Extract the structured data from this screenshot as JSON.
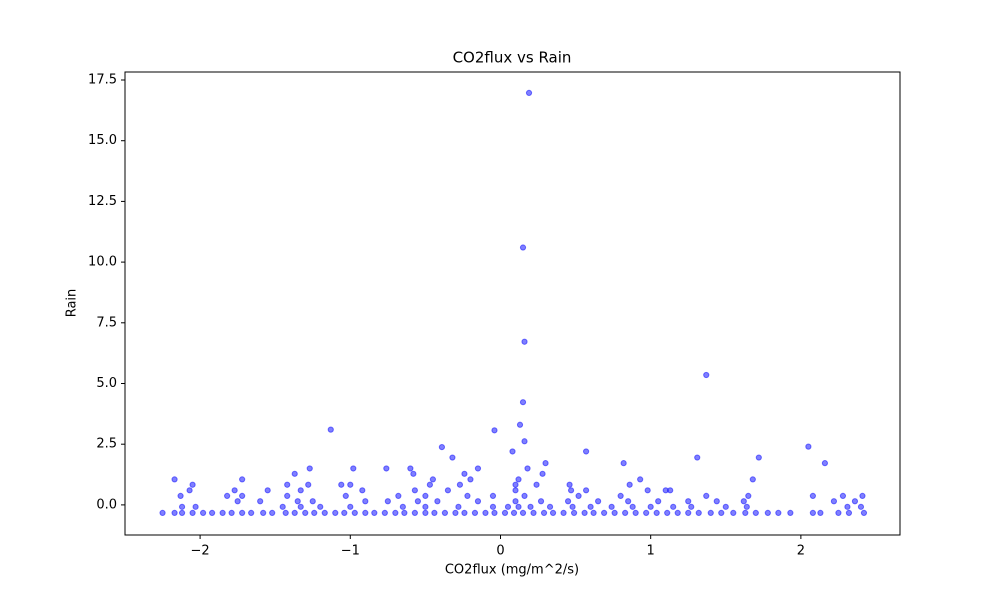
{
  "chart_data": {
    "type": "scatter",
    "title": "CO2flux vs Rain",
    "xlabel": "CO2flux (mg/m^2/s)",
    "ylabel": "Rain",
    "xlim": [
      -2.5,
      2.66
    ],
    "ylim": [
      -1.24,
      17.83
    ],
    "xticks": [
      {
        "value": -2,
        "label": "−2"
      },
      {
        "value": -1,
        "label": "−1"
      },
      0,
      1,
      2
    ],
    "yticks": [
      {
        "value": 0,
        "label": "0.0"
      },
      2.5,
      {
        "value": 5,
        "label": "5.0"
      },
      7.5,
      {
        "value": 10,
        "label": "10.0"
      },
      12.5,
      {
        "value": 15,
        "label": "15.0"
      },
      17.5
    ],
    "color": "#0000ff",
    "x": [
      -2.25,
      -2.17,
      -2.12,
      -2.05,
      -1.98,
      -1.92,
      -1.85,
      -1.79,
      -1.72,
      -1.66,
      -1.58,
      -1.52,
      -1.43,
      -1.37,
      -1.3,
      -1.24,
      -1.17,
      -1.1,
      -1.04,
      -0.97,
      -0.9,
      -0.84,
      -0.77,
      -0.7,
      -0.64,
      -0.57,
      -0.5,
      -0.44,
      -0.37,
      -0.3,
      -0.24,
      -0.17,
      -0.1,
      -0.04,
      0.03,
      0.09,
      0.15,
      0.22,
      0.29,
      0.35,
      0.42,
      0.49,
      0.56,
      0.62,
      0.69,
      0.76,
      0.83,
      0.9,
      0.97,
      1.04,
      1.11,
      1.18,
      1.25,
      1.32,
      1.4,
      1.47,
      1.55,
      1.63,
      1.7,
      1.78,
      1.85,
      1.93,
      2.08,
      2.13,
      2.25,
      2.32,
      2.42,
      -2.12,
      -2.03,
      -1.45,
      -1.33,
      -1.2,
      -1.0,
      -0.65,
      -0.5,
      -0.28,
      -0.05,
      0.05,
      0.12,
      0.2,
      0.33,
      0.48,
      0.6,
      0.74,
      0.88,
      1.0,
      1.15,
      1.27,
      1.5,
      1.64,
      2.31,
      2.4,
      -1.75,
      -1.6,
      -1.35,
      -1.25,
      -0.9,
      -0.75,
      -0.55,
      -0.42,
      -0.15,
      0.1,
      0.27,
      0.45,
      0.65,
      0.85,
      1.05,
      1.25,
      1.44,
      1.62,
      2.22,
      2.36,
      -2.13,
      -1.82,
      -1.72,
      -1.42,
      -1.03,
      -0.68,
      -0.5,
      -0.22,
      -0.05,
      0.16,
      0.52,
      0.8,
      1.37,
      1.65,
      2.08,
      2.28,
      2.41,
      -2.07,
      -1.77,
      -1.55,
      -1.33,
      -0.92,
      -0.57,
      -0.35,
      0.1,
      0.47,
      0.57,
      0.98,
      1.1,
      1.13,
      -2.05,
      -1.42,
      -1.28,
      -1.06,
      -1.0,
      -0.47,
      -0.27,
      0.1,
      0.24,
      0.46,
      0.86,
      -2.17,
      -1.72,
      -0.45,
      -0.2,
      0.12,
      0.93,
      1.68,
      -1.37,
      -0.58,
      -0.24,
      0.28,
      -1.27,
      -0.98,
      -0.76,
      -0.6,
      -0.15,
      0.18,
      0.19,
      0.15,
      0.16,
      1.37,
      0.15,
      0.13,
      0.16,
      -1.13,
      -0.04,
      2.05,
      -0.39,
      0.57,
      0.08,
      1.72,
      1.31,
      -0.32,
      2.16,
      0.3,
      0.82
    ],
    "values": [
      -0.33,
      -0.33,
      -0.33,
      -0.33,
      -0.33,
      -0.33,
      -0.33,
      -0.33,
      -0.33,
      -0.33,
      -0.33,
      -0.33,
      -0.33,
      -0.33,
      -0.33,
      -0.33,
      -0.33,
      -0.33,
      -0.33,
      -0.33,
      -0.33,
      -0.33,
      -0.33,
      -0.33,
      -0.33,
      -0.33,
      -0.33,
      -0.33,
      -0.33,
      -0.33,
      -0.33,
      -0.33,
      -0.33,
      -0.33,
      -0.33,
      -0.33,
      -0.33,
      -0.33,
      -0.33,
      -0.33,
      -0.33,
      -0.33,
      -0.33,
      -0.33,
      -0.33,
      -0.33,
      -0.33,
      -0.33,
      -0.33,
      -0.33,
      -0.33,
      -0.33,
      -0.33,
      -0.33,
      -0.33,
      -0.33,
      -0.33,
      -0.33,
      -0.33,
      -0.33,
      -0.33,
      -0.33,
      -0.33,
      -0.33,
      -0.33,
      -0.33,
      -0.33,
      -0.08,
      -0.08,
      -0.08,
      -0.08,
      -0.08,
      -0.08,
      -0.08,
      -0.08,
      -0.08,
      -0.08,
      -0.08,
      -0.08,
      -0.08,
      -0.08,
      -0.08,
      -0.08,
      -0.08,
      -0.08,
      -0.08,
      -0.08,
      -0.08,
      -0.08,
      -0.08,
      -0.08,
      -0.08,
      0.15,
      0.15,
      0.15,
      0.15,
      0.15,
      0.15,
      0.15,
      0.15,
      0.15,
      0.15,
      0.15,
      0.15,
      0.15,
      0.15,
      0.15,
      0.15,
      0.15,
      0.15,
      0.15,
      0.15,
      0.37,
      0.37,
      0.37,
      0.37,
      0.37,
      0.37,
      0.37,
      0.37,
      0.37,
      0.37,
      0.37,
      0.37,
      0.37,
      0.37,
      0.37,
      0.37,
      0.37,
      0.6,
      0.6,
      0.6,
      0.6,
      0.6,
      0.6,
      0.6,
      0.6,
      0.6,
      0.6,
      0.6,
      0.6,
      0.6,
      0.83,
      0.83,
      0.83,
      0.83,
      0.83,
      0.83,
      0.83,
      0.83,
      0.83,
      0.83,
      0.83,
      1.05,
      1.05,
      1.05,
      1.05,
      1.05,
      1.05,
      1.05,
      1.28,
      1.28,
      1.28,
      1.28,
      1.5,
      1.5,
      1.5,
      1.5,
      1.5,
      1.5,
      16.97,
      10.6,
      6.72,
      5.35,
      4.23,
      3.3,
      2.62,
      3.1,
      3.07,
      2.4,
      2.38,
      2.2,
      2.2,
      1.95,
      1.95,
      1.95,
      1.72,
      1.72,
      1.72
    ]
  }
}
